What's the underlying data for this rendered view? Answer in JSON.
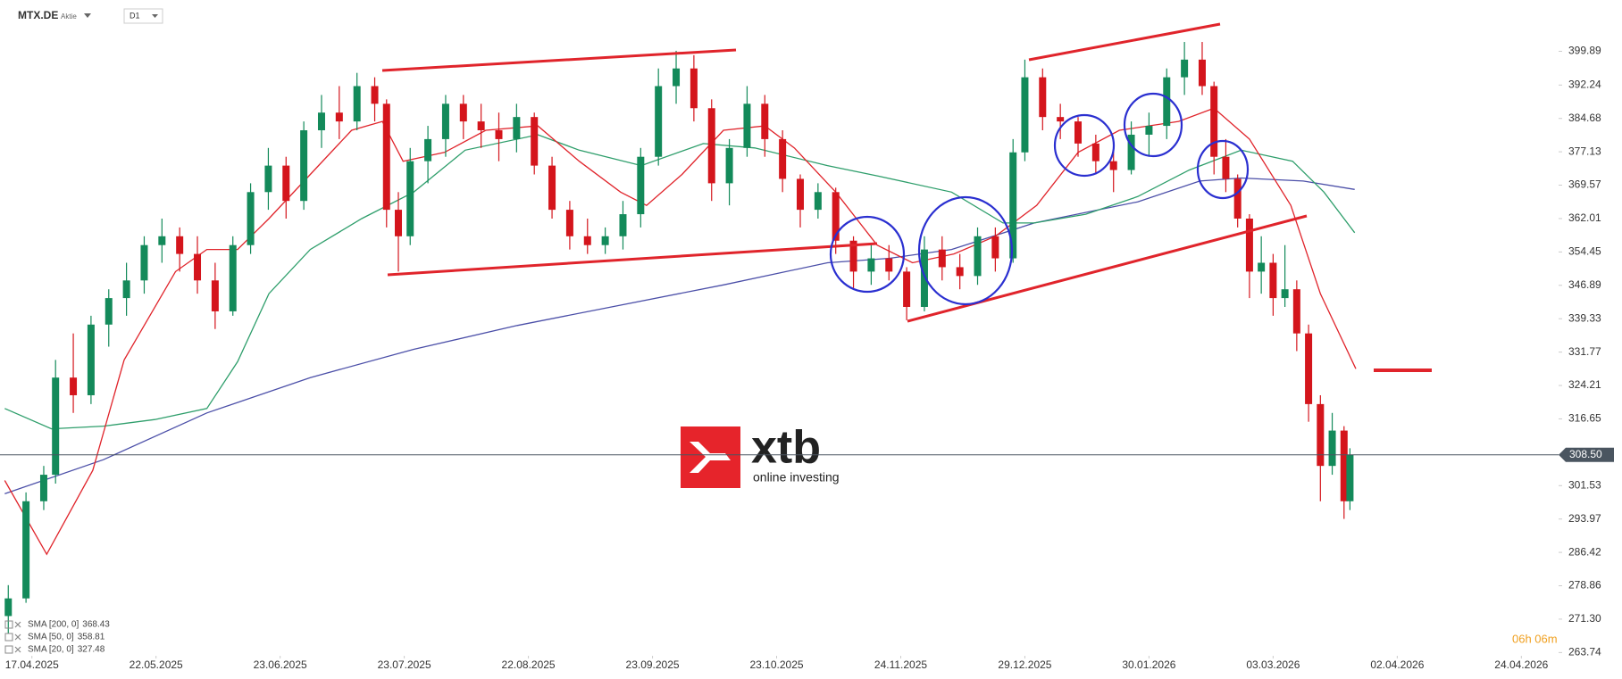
{
  "header": {
    "symbol": "MTX.DE",
    "kind": "Aktie",
    "interval": "D1"
  },
  "watermark": {
    "brand": "xtb",
    "tagline": "online investing"
  },
  "countdown": "06h 06m",
  "chart_data": {
    "type": "candlestick",
    "up_color": "#138a5a",
    "down_color": "#d4151c",
    "xlim": [
      -5.4,
      258.3
    ],
    "ylim": [
      263,
      411.5
    ],
    "xticks": [
      {
        "value": 0,
        "label": "17.04.2025"
      },
      {
        "value": 21,
        "label": "22.05.2025"
      },
      {
        "value": 42,
        "label": "23.06.2025"
      },
      {
        "value": 63,
        "label": "23.07.2025"
      },
      {
        "value": 84,
        "label": "22.08.2025"
      },
      {
        "value": 105,
        "label": "23.09.2025"
      },
      {
        "value": 126,
        "label": "23.10.2025"
      },
      {
        "value": 147,
        "label": "24.11.2025"
      },
      {
        "value": 168,
        "label": "29.12.2025"
      },
      {
        "value": 189,
        "label": "30.01.2026"
      },
      {
        "value": 210,
        "label": "03.03.2026"
      },
      {
        "value": 231,
        "label": "02.04.2026"
      },
      {
        "value": 252,
        "label": "24.04.2026"
      }
    ],
    "yticks": [
      263.74,
      {
        "value": 271.3,
        "label": "271.30"
      },
      278.86,
      286.42,
      293.97,
      301.53,
      316.65,
      324.21,
      331.77,
      339.33,
      346.89,
      354.45,
      362.01,
      369.57,
      377.13,
      384.68,
      392.24,
      399.89
    ],
    "last_price": {
      "value": 308.5,
      "label": "308.50"
    },
    "candles": {
      "x": [
        -4,
        -1,
        2,
        4,
        7,
        10,
        13,
        16,
        19,
        22,
        25,
        28,
        31,
        34,
        37,
        40,
        43,
        46,
        49,
        52,
        55,
        58,
        60,
        62,
        64,
        67,
        70,
        73,
        76,
        79,
        82,
        85,
        88,
        91,
        94,
        97,
        100,
        103,
        106,
        109,
        112,
        115,
        118,
        121,
        124,
        127,
        130,
        133,
        136,
        139,
        142,
        145,
        148,
        151,
        154,
        157,
        160,
        163,
        166,
        168,
        171,
        174,
        177,
        180,
        183,
        186,
        189,
        192,
        195,
        198,
        200,
        202,
        204,
        206,
        208,
        210,
        212,
        214,
        216,
        218,
        220,
        222,
        223
      ],
      "open": [
        272,
        276,
        298,
        304,
        326,
        322,
        338,
        344,
        348,
        356,
        358,
        354,
        348,
        341,
        356,
        368,
        374,
        366,
        382,
        386,
        384,
        392,
        388,
        364,
        358,
        375,
        380,
        388,
        384,
        382,
        380,
        385,
        374,
        364,
        358,
        356,
        358,
        363,
        376,
        392,
        396,
        387,
        370,
        378,
        388,
        380,
        371,
        364,
        368,
        357,
        350,
        353,
        350,
        342,
        355,
        351,
        349,
        358,
        353,
        377,
        394,
        385,
        384,
        379,
        375,
        373,
        381,
        383,
        394,
        398,
        392,
        376,
        371,
        362,
        350,
        352,
        344,
        346,
        336,
        320,
        306,
        314,
        298
      ],
      "high": [
        279,
        300,
        306,
        330,
        336,
        340,
        346,
        352,
        358,
        362,
        360,
        358,
        352,
        358,
        370,
        378,
        376,
        384,
        390,
        392,
        395,
        394,
        389,
        368,
        378,
        383,
        390,
        390,
        388,
        386,
        388,
        386,
        376,
        366,
        362,
        360,
        366,
        378,
        396,
        400,
        399,
        389,
        380,
        392,
        390,
        382,
        372,
        370,
        369,
        358,
        356,
        356,
        351,
        358,
        358,
        354,
        360,
        360,
        380,
        398,
        396,
        388,
        385,
        381,
        380,
        384,
        386,
        396,
        402,
        402,
        393,
        380,
        372,
        363,
        358,
        354,
        356,
        348,
        338,
        322,
        318,
        315,
        310
      ],
      "low": [
        268,
        275,
        296,
        302,
        318,
        320,
        333,
        340,
        345,
        352,
        350,
        345,
        337,
        340,
        354,
        364,
        362,
        364,
        378,
        380,
        382,
        384,
        360,
        350,
        356,
        370,
        376,
        380,
        378,
        375,
        377,
        372,
        362,
        355,
        354,
        354,
        355,
        360,
        374,
        388,
        384,
        366,
        365,
        376,
        376,
        368,
        360,
        362,
        354,
        346,
        347,
        348,
        339,
        341,
        348,
        346,
        347,
        350,
        352,
        375,
        382,
        380,
        376,
        372,
        368,
        372,
        376,
        380,
        390,
        390,
        372,
        368,
        360,
        344,
        345,
        340,
        342,
        332,
        316,
        298,
        304,
        294,
        296
      ],
      "close": [
        276,
        298,
        304,
        326,
        322,
        338,
        344,
        348,
        356,
        358,
        354,
        348,
        341,
        356,
        368,
        374,
        366,
        382,
        386,
        384,
        392,
        388,
        364,
        358,
        375,
        380,
        388,
        384,
        382,
        380,
        385,
        374,
        364,
        358,
        356,
        358,
        363,
        376,
        392,
        396,
        387,
        370,
        378,
        388,
        380,
        371,
        364,
        368,
        357,
        350,
        353,
        350,
        342,
        355,
        351,
        349,
        358,
        353,
        377,
        394,
        385,
        384,
        379,
        375,
        373,
        381,
        383,
        394,
        398,
        392,
        376,
        371,
        362,
        350,
        352,
        344,
        346,
        336,
        320,
        306,
        314,
        298,
        308.5
      ]
    },
    "series": [
      {
        "name": "SMA [200, 0]",
        "last_value": 368.43,
        "color": "#4b4fa8",
        "x": [
          -4.6,
          12.1,
          29.6,
          47.1,
          64.6,
          82.1,
          99.6,
          117.1,
          134.6,
          145.1,
          155.6,
          169.6,
          187.1,
          197.6,
          204.6,
          215.1,
          223.8
        ],
        "values": [
          299.7,
          307.4,
          318,
          326,
          332.4,
          337.8,
          342.4,
          347,
          352,
          353,
          355,
          361,
          365.8,
          370.5,
          371.2,
          370.5,
          368.6
        ]
      },
      {
        "name": "SMA [50, 0]",
        "last_value": 358.81,
        "color": "#2e9e6b",
        "x": [
          -4.6,
          3.3,
          12.1,
          20.8,
          29.6,
          34.8,
          40.1,
          47.1,
          55.8,
          64.6,
          73.3,
          85.6,
          92.6,
          103.1,
          113.6,
          122.3,
          134.6,
          143.3,
          155.6,
          164.3,
          169.6,
          178.3,
          187.1,
          195.8,
          204.6,
          213.3,
          218.6,
          223.8
        ],
        "values": [
          319,
          314.4,
          315,
          316.5,
          319,
          329.6,
          345,
          355,
          362,
          368,
          377.5,
          381,
          377.5,
          374,
          379,
          378,
          374,
          371.6,
          368,
          361,
          361,
          363,
          367,
          373,
          377.5,
          375,
          368,
          358.8
        ]
      },
      {
        "name": "SMA [20, 0]",
        "last_value": 327.48,
        "color": "#e0242b",
        "x": [
          -4.6,
          2.5,
          10.3,
          15.6,
          24.3,
          29.6,
          34.8,
          40.1,
          47.1,
          54.1,
          59.3,
          62.8,
          69.8,
          76.8,
          85.6,
          92.6,
          99.6,
          104,
          110,
          117,
          124,
          129,
          136,
          143,
          149,
          156,
          163,
          170,
          177,
          184,
          194,
          200,
          206,
          213,
          218,
          224
        ],
        "values": [
          302.7,
          286,
          305,
          330,
          350,
          355,
          355,
          362,
          372,
          382,
          384,
          375,
          377,
          382,
          383,
          375,
          368,
          365,
          372,
          382,
          383,
          378,
          368,
          356,
          352,
          354,
          358,
          365,
          377,
          382,
          384,
          387,
          380,
          365,
          345,
          328
        ]
      }
    ]
  }
}
